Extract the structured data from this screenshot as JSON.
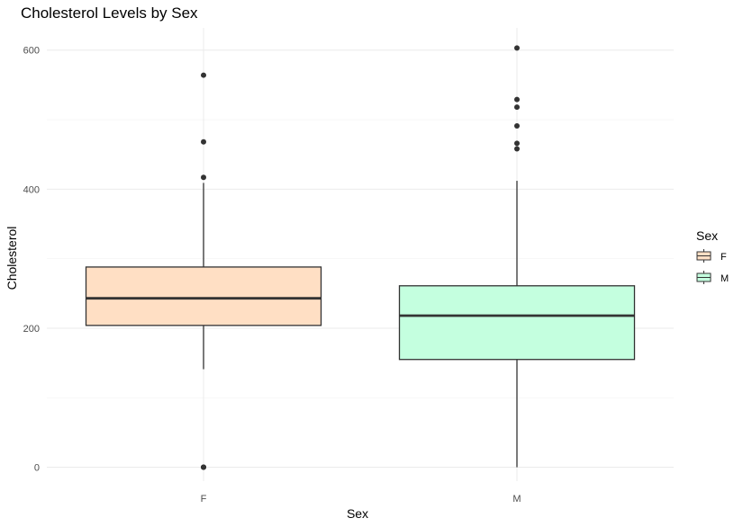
{
  "chart_data": {
    "type": "boxplot",
    "title": "Cholesterol Levels by Sex",
    "xlabel": "Sex",
    "ylabel": "Cholesterol",
    "ylim": [
      -20,
      632
    ],
    "yticks": [
      0,
      200,
      400,
      600
    ],
    "grid": true,
    "legend": {
      "title": "Sex",
      "position": "right",
      "entries": [
        {
          "label": "F",
          "color": "#FFDFC4"
        },
        {
          "label": "M",
          "color": "#C4FFDF"
        }
      ]
    },
    "categories": [
      "F",
      "M"
    ],
    "boxes": [
      {
        "category": "F",
        "whisker_low": 141,
        "q1": 204,
        "median": 243,
        "q3": 288,
        "whisker_high": 409,
        "outliers": [
          0,
          0,
          0,
          417,
          468,
          564
        ],
        "fill": "#FFDFC4"
      },
      {
        "category": "M",
        "whisker_low": 0,
        "q1": 155,
        "median": 218,
        "q3": 261,
        "whisker_high": 412,
        "outliers": [
          458,
          466,
          491,
          518,
          529,
          603
        ],
        "fill": "#C4FFDF"
      }
    ]
  }
}
